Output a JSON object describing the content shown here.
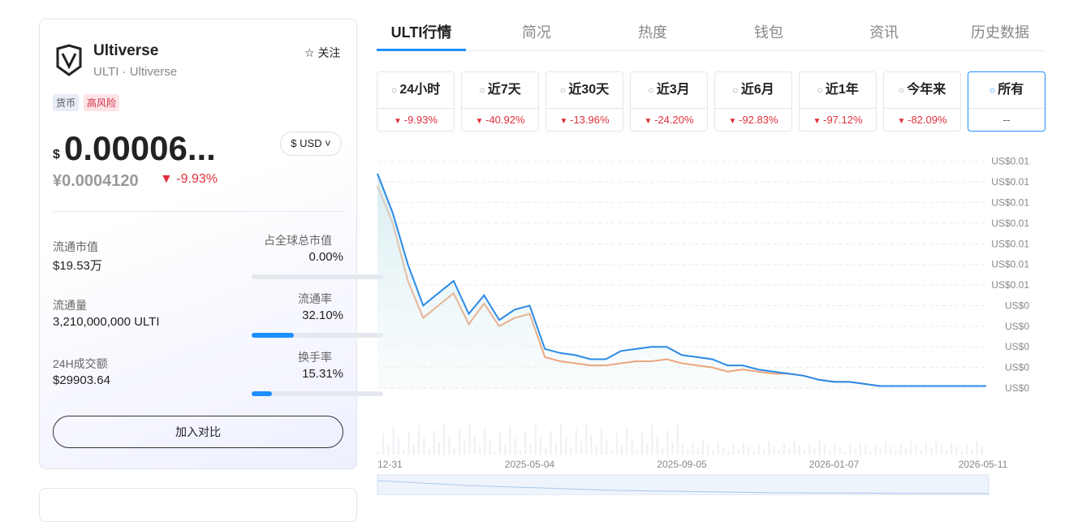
{
  "coin": {
    "name": "Ultiverse",
    "subtitle": "ULTI · Ultiverse",
    "follow": "关注",
    "tags": [
      "货币",
      "高风险"
    ],
    "price_prefix": "$",
    "price": "0.00006...",
    "currency": "$ USD",
    "cny_price": "¥0.0004120",
    "change": "-9.93%",
    "stats": [
      {
        "label": "流通市值",
        "value": "$19.53万"
      },
      {
        "label": "占全球总市值",
        "value": "0.00%"
      },
      {
        "label": "流通量",
        "value": "3,210,000,000 ULTI"
      },
      {
        "label": "流通率",
        "value": "32.10%"
      },
      {
        "label": "24H成交额",
        "value": "$29903.64"
      },
      {
        "label": "换手率",
        "value": "15.31%"
      }
    ],
    "compare_button": "加入对比"
  },
  "tabs": [
    "ULTI行情",
    "简况",
    "热度",
    "钱包",
    "资讯",
    "历史数据"
  ],
  "periods": [
    {
      "label": "24小时",
      "change": "-9.93%"
    },
    {
      "label": "近7天",
      "change": "-40.92%"
    },
    {
      "label": "近30天",
      "change": "-13.96%"
    },
    {
      "label": "近3月",
      "change": "-24.20%"
    },
    {
      "label": "近6月",
      "change": "-92.83%"
    },
    {
      "label": "近1年",
      "change": "-97.12%"
    },
    {
      "label": "今年来",
      "change": "-82.09%"
    },
    {
      "label": "所有",
      "change": "--"
    }
  ],
  "chart_data": {
    "type": "line",
    "categories": [
      "12-31",
      null,
      null,
      null,
      null,
      null,
      null,
      null,
      null,
      null,
      "2025-05-04",
      null,
      null,
      null,
      null,
      null,
      null,
      null,
      null,
      null,
      "2025-09-05",
      null,
      null,
      null,
      null,
      null,
      null,
      null,
      null,
      null,
      "2026-01-07",
      null,
      null,
      null,
      null,
      null,
      null,
      null,
      null,
      null,
      "2026-05-11"
    ],
    "series": [
      {
        "color": "#2b8ae6",
        "values": [
          0.0104,
          0.0085,
          0.006,
          0.004,
          0.0046,
          0.0052,
          0.0036,
          0.0045,
          0.0033,
          0.0038,
          0.004,
          0.0019,
          0.0017,
          0.0016,
          0.0014,
          0.0014,
          0.0018,
          0.0019,
          0.002,
          0.002,
          0.0016,
          0.0015,
          0.0014,
          0.0011,
          0.0011,
          0.0009,
          0.0008,
          0.0007,
          0.0006,
          0.0004,
          0.0003,
          0.0003,
          0.0002,
          0.0001,
          0.0001,
          0.0001,
          0.0001,
          0.0001,
          0.0001,
          0.0001,
          0.0001
        ]
      },
      {
        "color": "#ef7a3a",
        "values": [
          0.0098,
          0.008,
          0.0052,
          0.0034,
          0.004,
          0.0046,
          0.0031,
          0.0041,
          0.003,
          0.0034,
          0.0036,
          0.0015,
          0.0013,
          0.0012,
          0.0011,
          0.0011,
          0.0012,
          0.0013,
          0.0013,
          0.0014,
          0.0012,
          0.0011,
          0.001,
          0.0008,
          0.0009,
          0.0008,
          0.0007,
          0.0007,
          0.0006,
          0.0004,
          0.0003,
          0.0003,
          0.0002,
          0.0001,
          0.0001,
          0.0001,
          0.0001,
          0.0001,
          0.0001,
          0.0001,
          0.0001
        ]
      }
    ],
    "ylim": [
      0,
      0.0115
    ],
    "yticks": [
      {
        "value": 0.011,
        "label": "US$0.01"
      },
      {
        "value": 0.01,
        "label": "US$0.01"
      },
      {
        "value": 0.009,
        "label": "US$0.01"
      },
      {
        "value": 0.008,
        "label": "US$0.01"
      },
      {
        "value": 0.007,
        "label": "US$0.01"
      },
      {
        "value": 0.006,
        "label": "US$0.01"
      },
      {
        "value": 0.005,
        "label": "US$0.01"
      },
      {
        "value": 0.004,
        "label": "US$0"
      },
      {
        "value": 0.003,
        "label": "US$0"
      },
      {
        "value": 0.002,
        "label": "US$0"
      },
      {
        "value": 0.001,
        "label": "US$0"
      },
      {
        "value": 0,
        "label": "US$0"
      }
    ],
    "grid": true
  }
}
